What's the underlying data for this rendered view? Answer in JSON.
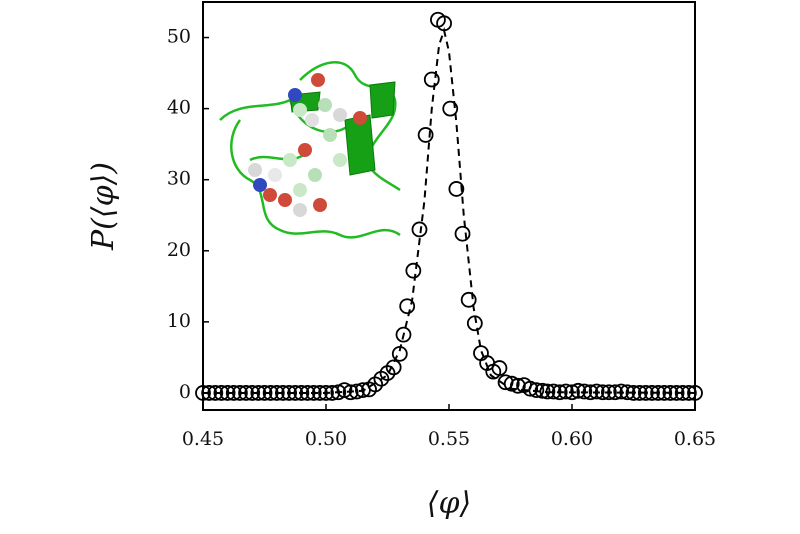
{
  "chart_data": {
    "type": "scatter",
    "x_label": "⟨φ⟩",
    "y_label": "P(⟨φ⟩)",
    "xlim": [
      0.45,
      0.65
    ],
    "ylim": [
      -2.4,
      55
    ],
    "xticks": [
      0.45,
      {
        "value": 0.5,
        "label": "0.50"
      },
      0.55,
      {
        "value": 0.6,
        "label": "0.60"
      },
      0.65
    ],
    "yticks": [
      0,
      10,
      20,
      30,
      40,
      50
    ],
    "series": [
      {
        "type": "scatter",
        "marker": "open-circle",
        "color": "#000000",
        "x": [
          0.45,
          0.4525,
          0.455,
          0.4575,
          0.46,
          0.4625,
          0.465,
          0.4675,
          0.47,
          0.4725,
          0.475,
          0.4775,
          0.48,
          0.4825,
          0.485,
          0.4875,
          0.49,
          0.4925,
          0.495,
          0.4975,
          0.5,
          0.5025,
          0.505,
          0.5075,
          0.51,
          0.5125,
          0.515,
          0.5175,
          0.52,
          0.5225,
          0.525,
          0.5275,
          0.53,
          0.5315,
          0.533,
          0.5355,
          0.538,
          0.5405,
          0.543,
          0.5455,
          0.548,
          0.5505,
          0.553,
          0.5555,
          0.558,
          0.5605,
          0.563,
          0.5655,
          0.568,
          0.5705,
          0.573,
          0.5755,
          0.578,
          0.5805,
          0.583,
          0.5855,
          0.588,
          0.59,
          0.5925,
          0.595,
          0.5975,
          0.6,
          0.6025,
          0.605,
          0.6075,
          0.61,
          0.6125,
          0.615,
          0.6175,
          0.62,
          0.6225,
          0.625,
          0.6275,
          0.63,
          0.6325,
          0.635,
          0.6375,
          0.64,
          0.6425,
          0.645,
          0.6475,
          0.65
        ],
        "values": [
          0,
          0,
          0,
          0,
          0,
          0,
          0,
          0,
          0,
          0,
          0,
          0,
          0,
          0,
          0,
          0,
          0,
          0,
          0,
          0,
          0,
          0,
          0.1,
          0.4,
          0.1,
          0.2,
          0.4,
          0.5,
          1.2,
          2.0,
          2.8,
          3.6,
          5.5,
          8.2,
          12.2,
          17.2,
          23.0,
          36.3,
          44.1,
          52.5,
          52.0,
          40.0,
          28.7,
          22.4,
          13.1,
          9.8,
          5.6,
          4.2,
          3.0,
          3.5,
          1.5,
          1.3,
          1.0,
          1.1,
          0.6,
          0.4,
          0.3,
          0.2,
          0.2,
          0.1,
          0.2,
          0.1,
          0.3,
          0.2,
          0.1,
          0.2,
          0.1,
          0.1,
          0.1,
          0.2,
          0.1,
          0,
          0,
          0,
          0,
          0,
          0,
          0,
          0,
          0,
          0,
          0
        ]
      },
      {
        "type": "line",
        "dash": "dashed",
        "color": "#000000",
        "x": [
          0.45,
          0.5,
          0.515,
          0.525,
          0.53,
          0.535,
          0.54,
          0.543,
          0.546,
          0.548,
          0.55,
          0.553,
          0.556,
          0.56,
          0.563,
          0.567,
          0.575,
          0.59,
          0.65
        ],
        "values": [
          0,
          0,
          0.3,
          2.5,
          6,
          13,
          27,
          40,
          49,
          51,
          48,
          38,
          25,
          12,
          6,
          2.5,
          0.6,
          0.1,
          0
        ]
      }
    ]
  }
}
